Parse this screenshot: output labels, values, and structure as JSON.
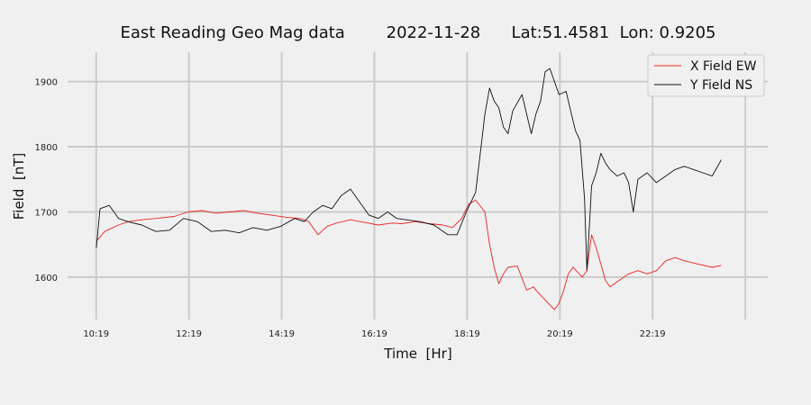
{
  "chart_data": {
    "type": "line",
    "title": "East Reading Geo Mag data        2022-11-28      Lat:51.4581  Lon: 0.9205",
    "xlabel": "Time  [Hr]",
    "ylabel": "Field  [nT]",
    "x_tick_labels": [
      "10:19",
      "12:19",
      "14:19",
      "16:19",
      "18:19",
      "20:19",
      "22:19"
    ],
    "x_tick_hours": [
      10.3167,
      12.3167,
      14.3167,
      16.3167,
      18.3167,
      20.3167,
      22.3167
    ],
    "xlim": [
      9.7,
      24.8
    ],
    "y_ticks": [
      1600,
      1700,
      1800,
      1900
    ],
    "ylim": [
      1535,
      1945
    ],
    "grid": true,
    "legend_position": "top-right",
    "colors": {
      "background": "#f0f0f0",
      "grid": "#cbcbcb"
    },
    "series": [
      {
        "name": "X Field EW",
        "color": "#e8231e",
        "x": [
          10.32,
          10.5,
          10.8,
          11.0,
          11.3,
          11.6,
          12.0,
          12.3,
          12.6,
          12.9,
          13.2,
          13.5,
          13.8,
          14.1,
          14.4,
          14.7,
          14.9,
          15.1,
          15.3,
          15.5,
          15.8,
          16.1,
          16.4,
          16.7,
          16.9,
          17.2,
          17.5,
          17.8,
          18.0,
          18.2,
          18.35,
          18.5,
          18.7,
          18.8,
          18.9,
          19.0,
          19.1,
          19.2,
          19.4,
          19.6,
          19.75,
          19.8,
          20.0,
          20.2,
          20.3,
          20.4,
          20.5,
          20.6,
          20.8,
          20.9,
          21.0,
          21.1,
          21.2,
          21.3,
          21.4,
          21.6,
          21.8,
          22.0,
          22.2,
          22.4,
          22.6,
          22.8,
          23.0,
          23.3,
          23.6,
          23.8
        ],
        "y": [
          1655,
          1670,
          1680,
          1685,
          1688,
          1690,
          1693,
          1700,
          1702,
          1698,
          1700,
          1702,
          1698,
          1695,
          1692,
          1690,
          1685,
          1665,
          1678,
          1683,
          1688,
          1684,
          1680,
          1683,
          1682,
          1685,
          1682,
          1680,
          1676,
          1690,
          1712,
          1718,
          1700,
          1650,
          1615,
          1590,
          1605,
          1615,
          1617,
          1580,
          1585,
          1580,
          1565,
          1550,
          1560,
          1580,
          1605,
          1615,
          1600,
          1610,
          1665,
          1645,
          1620,
          1595,
          1585,
          1595,
          1605,
          1610,
          1605,
          1610,
          1625,
          1630,
          1625,
          1620,
          1615,
          1618
        ]
      },
      {
        "name": "Y Field NS",
        "color": "#111111",
        "x": [
          10.32,
          10.4,
          10.6,
          10.8,
          11.0,
          11.3,
          11.6,
          11.9,
          12.2,
          12.5,
          12.8,
          13.1,
          13.4,
          13.7,
          14.0,
          14.3,
          14.6,
          14.8,
          15.0,
          15.2,
          15.4,
          15.6,
          15.8,
          16.0,
          16.2,
          16.4,
          16.6,
          16.8,
          17.0,
          17.3,
          17.6,
          17.9,
          18.1,
          18.3,
          18.5,
          18.6,
          18.7,
          18.8,
          18.9,
          19.0,
          19.1,
          19.2,
          19.3,
          19.5,
          19.7,
          19.8,
          19.9,
          20.0,
          20.1,
          20.2,
          20.3,
          20.45,
          20.55,
          20.65,
          20.75,
          20.85,
          20.9,
          21.0,
          21.1,
          21.2,
          21.3,
          21.4,
          21.55,
          21.7,
          21.8,
          21.9,
          22.0,
          22.2,
          22.4,
          22.6,
          22.8,
          23.0,
          23.2,
          23.4,
          23.6,
          23.8
        ],
        "y": [
          1645,
          1705,
          1710,
          1690,
          1685,
          1680,
          1670,
          1672,
          1690,
          1685,
          1670,
          1672,
          1668,
          1676,
          1672,
          1678,
          1690,
          1685,
          1700,
          1710,
          1705,
          1725,
          1735,
          1715,
          1695,
          1690,
          1700,
          1690,
          1688,
          1685,
          1680,
          1665,
          1665,
          1700,
          1730,
          1790,
          1850,
          1890,
          1870,
          1860,
          1830,
          1820,
          1855,
          1880,
          1820,
          1850,
          1870,
          1915,
          1920,
          1900,
          1880,
          1885,
          1855,
          1825,
          1810,
          1720,
          1610,
          1740,
          1760,
          1790,
          1775,
          1765,
          1755,
          1760,
          1745,
          1700,
          1750,
          1760,
          1745,
          1755,
          1765,
          1770,
          1765,
          1760,
          1755,
          1780
        ]
      }
    ]
  }
}
